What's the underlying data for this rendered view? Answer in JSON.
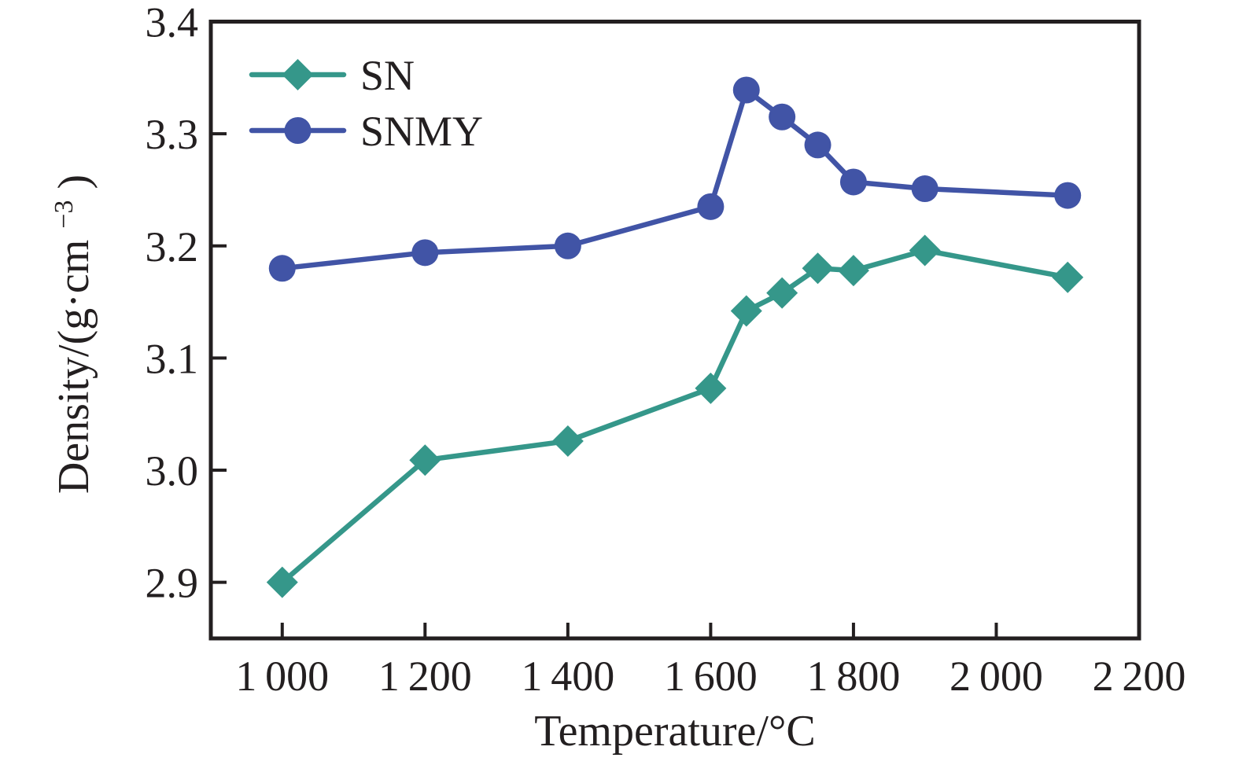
{
  "figure": {
    "background": "#ffffff",
    "axis_color": "#231f20"
  },
  "chart_data": {
    "type": "line",
    "title": "",
    "xlabel": "Temperature/°C",
    "ylabel_prefix": "Density/(g·cm",
    "ylabel_sup": "−3",
    "ylabel_suffix": ")",
    "xlim": [
      900,
      2200
    ],
    "ylim": [
      2.85,
      3.4
    ],
    "grid": false,
    "legend_position": "top-left",
    "x_ticks": [
      1000,
      1200,
      1400,
      1600,
      1800,
      2000,
      2200
    ],
    "x_tick_labels": [
      "1 000",
      "1 200",
      "1 400",
      "1 600",
      "1 800",
      "2 000",
      "2 200"
    ],
    "y_ticks": [
      2.9,
      3.0,
      3.1,
      3.2,
      3.3,
      3.4
    ],
    "y_tick_labels": [
      "2.9",
      "3.0",
      "3.1",
      "3.2",
      "3.3",
      "3.4"
    ],
    "series": [
      {
        "name": "SN",
        "color": "#35978a",
        "marker": "diamond",
        "x": [
          1000,
          1200,
          1400,
          1600,
          1650,
          1700,
          1750,
          1800,
          1900,
          2100
        ],
        "y": [
          2.9,
          3.009,
          3.026,
          3.073,
          3.142,
          3.158,
          3.18,
          3.178,
          3.196,
          3.172
        ]
      },
      {
        "name": "SNMY",
        "color": "#4154a6",
        "marker": "circle",
        "x": [
          1000,
          1200,
          1400,
          1600,
          1650,
          1700,
          1750,
          1800,
          1900,
          2100
        ],
        "y": [
          3.18,
          3.194,
          3.2,
          3.235,
          3.339,
          3.315,
          3.29,
          3.257,
          3.251,
          3.245
        ]
      }
    ]
  }
}
